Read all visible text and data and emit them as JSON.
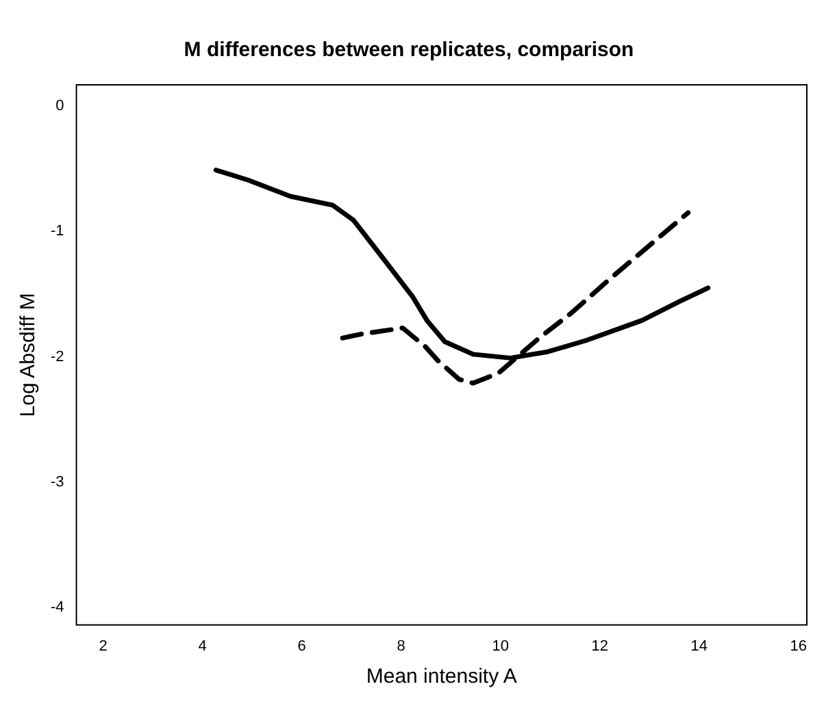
{
  "chart_data": {
    "type": "line",
    "title": "M differences between replicates, comparison",
    "xlabel": "Mean intensity A",
    "ylabel": "Log Absdiff M",
    "xlim": [
      1.46,
      16.17
    ],
    "ylim": [
      -4.14,
      0.17
    ],
    "xticks": [
      2,
      4,
      6,
      8,
      10,
      12,
      14,
      16
    ],
    "yticks": [
      -4,
      -3,
      -2,
      -1,
      0
    ],
    "marker": "none",
    "series": [
      {
        "color": "#000000",
        "line_style": "solid",
        "x": [
          4.27,
          4.92,
          5.77,
          6.62,
          7.04,
          7.55,
          8.23,
          8.52,
          8.88,
          9.45,
          10.2,
          10.95,
          11.72,
          12.85,
          13.6,
          14.18
        ],
        "values": [
          -0.51,
          -0.59,
          -0.72,
          -0.79,
          -0.91,
          -1.17,
          -1.52,
          -1.71,
          -1.88,
          -1.98,
          -2.01,
          -1.96,
          -1.87,
          -1.71,
          -1.56,
          -1.45
        ]
      },
      {
        "color": "#000000",
        "line_style": "dashed",
        "x": [
          6.82,
          7.18,
          8.03,
          8.49,
          8.74,
          9.17,
          9.45,
          9.96,
          10.78,
          11.43,
          12.2,
          13.78
        ],
        "values": [
          -1.85,
          -1.82,
          -1.77,
          -1.92,
          -2.03,
          -2.18,
          -2.21,
          -2.13,
          -1.85,
          -1.65,
          -1.38,
          -0.85
        ]
      }
    ]
  }
}
